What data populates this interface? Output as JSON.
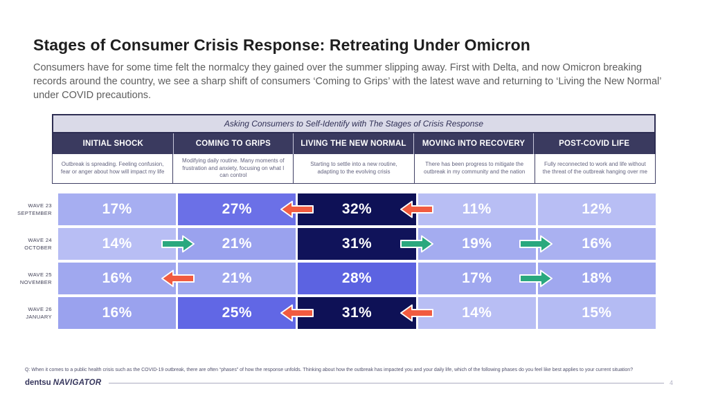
{
  "slide": {
    "title": "Stages of Consumer Crisis Response: Retreating Under Omicron",
    "subtitle": "Consumers have for some time felt the normalcy they gained over the summer slipping away. First with Delta, and now Omicron breaking records around the country, we see a sharp shift of consumers ‘Coming to Grips’ with the latest wave and returning to ‘Living the New Normal’ under COVID precautions.",
    "footnote": "Q: When it comes to a public health crisis such as the COVID-19 outbreak, there are often “phases” of how the response unfolds. Thinking about how the outbreak has impacted you and your daily life, which of the following phases do you feel like best applies to your current situation?",
    "brand": "dentsu",
    "brand_product": "NAVIGATOR",
    "page_number": "4"
  },
  "chart_data": {
    "type": "heatmap",
    "title": "Asking Consumers to Self-Identify with The Stages of Crisis Response",
    "value_suffix": "%",
    "legend_position": "none",
    "columns": [
      {
        "label": "INITIAL SHOCK",
        "description": "Outbreak is spreading. Feeling confusion, fear or anger about how will impact my life"
      },
      {
        "label": "COMING TO GRIPS",
        "description": "Modifying daily routine. Many moments of frustration and anxiety, focusing on what I can control"
      },
      {
        "label": "LIVING THE NEW NORMAL",
        "description": "Starting to settle into a new routine, adapting to the evolving crisis"
      },
      {
        "label": "MOVING INTO RECOVERY",
        "description": "There has been progress to mitigate the outbreak in my community and the nation"
      },
      {
        "label": "POST-COVID LIFE",
        "description": "Fully reconnected to work and life without the threat of the outbreak hanging over me"
      }
    ],
    "rows": [
      {
        "wave": "WAVE 23",
        "month": "SEPTEMBER",
        "values": [
          17,
          27,
          32,
          11,
          12
        ],
        "cell_colors": [
          "#a6aef1",
          "#6b70e7",
          "#0e1156",
          "#b8bef4",
          "#b8bef4"
        ],
        "arrows": [
          {
            "boundary": 1,
            "direction": "left"
          },
          {
            "boundary": 2,
            "direction": "left"
          }
        ]
      },
      {
        "wave": "WAVE 24",
        "month": "OCTOBER",
        "values": [
          14,
          21,
          31,
          19,
          16
        ],
        "cell_colors": [
          "#b8bef4",
          "#9aa2ee",
          "#10135a",
          "#a4acf0",
          "#aab1f1"
        ],
        "arrows": [
          {
            "boundary": 0,
            "direction": "right"
          },
          {
            "boundary": 2,
            "direction": "right"
          },
          {
            "boundary": 3,
            "direction": "right"
          }
        ]
      },
      {
        "wave": "WAVE 25",
        "month": "NOVEMBER",
        "values": [
          16,
          21,
          28,
          17,
          18
        ],
        "cell_colors": [
          "#a0a8ef",
          "#a0a8ef",
          "#5c63e1",
          "#a0a8ef",
          "#a0a8ef"
        ],
        "arrows": [
          {
            "boundary": 0,
            "direction": "left"
          },
          {
            "boundary": 3,
            "direction": "right"
          }
        ]
      },
      {
        "wave": "WAVE 26",
        "month": "JANUARY",
        "values": [
          16,
          25,
          31,
          14,
          15
        ],
        "cell_colors": [
          "#9aa2ee",
          "#6167e5",
          "#0e1156",
          "#b8bef4",
          "#b4bbf3"
        ],
        "arrows": [
          {
            "boundary": 1,
            "direction": "left"
          },
          {
            "boundary": 2,
            "direction": "left"
          }
        ]
      }
    ],
    "arrow_colors": {
      "left": "#f15b40",
      "right": "#2aa87e"
    },
    "cell_text_color": "#ffffff"
  }
}
